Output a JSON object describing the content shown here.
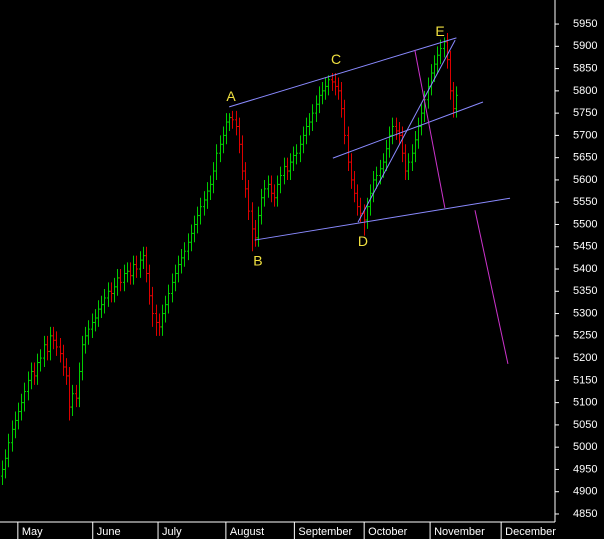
{
  "chart_data": {
    "type": "ohlc",
    "up_color": "#00cc00",
    "down_color": "#dd0000",
    "xlim": [
      -0.6,
      172.8
    ],
    "xticks": [
      {
        "value": 5.6,
        "label": "May"
      },
      {
        "value": 29,
        "label": "June"
      },
      {
        "value": 49.4,
        "label": "July"
      },
      {
        "value": 70.6,
        "label": "August"
      },
      {
        "value": 92,
        "label": "September"
      },
      {
        "value": 113.8,
        "label": "October"
      },
      {
        "value": 134.4,
        "label": "November"
      },
      {
        "value": 156.6,
        "label": "December"
      }
    ],
    "ylim": [
      4832,
      6004
    ],
    "yticks": [
      4850,
      4900,
      4950,
      5000,
      5050,
      5100,
      5150,
      5200,
      5250,
      5300,
      5350,
      5400,
      5450,
      5500,
      5550,
      5600,
      5650,
      5700,
      5750,
      5800,
      5850,
      5900,
      5950
    ],
    "open": [
      4935,
      4950,
      4975,
      5010,
      5040,
      5060,
      5080,
      5100,
      5125,
      5150,
      5170,
      5160,
      5190,
      5200,
      5230,
      5215,
      5250,
      5240,
      5225,
      5210,
      5180,
      5160,
      5090,
      5120,
      5110,
      5170,
      5230,
      5250,
      5265,
      5280,
      5290,
      5310,
      5320,
      5335,
      5350,
      5345,
      5360,
      5380,
      5370,
      5390,
      5395,
      5385,
      5410,
      5400,
      5420,
      5430,
      5390,
      5340,
      5300,
      5280,
      5270,
      5300,
      5320,
      5345,
      5370,
      5390,
      5410,
      5425,
      5440,
      5460,
      5480,
      5500,
      5520,
      5540,
      5555,
      5575,
      5590,
      5620,
      5660,
      5680,
      5700,
      5730,
      5740,
      5735,
      5720,
      5680,
      5620,
      5580,
      5530,
      5490,
      5470,
      5520,
      5560,
      5580,
      5590,
      5570,
      5560,
      5590,
      5610,
      5630,
      5620,
      5640,
      5655,
      5660,
      5680,
      5700,
      5720,
      5730,
      5750,
      5770,
      5790,
      5800,
      5810,
      5825,
      5820,
      5810,
      5800,
      5760,
      5700,
      5640,
      5600,
      5570,
      5540,
      5525,
      5510,
      5540,
      5570,
      5600,
      5610,
      5625,
      5640,
      5670,
      5700,
      5720,
      5710,
      5700,
      5660,
      5620,
      5640,
      5660,
      5690,
      5720,
      5750,
      5780,
      5810,
      5840,
      5860,
      5880,
      5895,
      5910,
      5870,
      5800,
      5760
    ],
    "high": [
      4970,
      4995,
      5030,
      5060,
      5080,
      5100,
      5120,
      5145,
      5170,
      5190,
      5190,
      5210,
      5220,
      5250,
      5250,
      5270,
      5270,
      5260,
      5245,
      5230,
      5200,
      5180,
      5140,
      5140,
      5190,
      5250,
      5270,
      5285,
      5300,
      5310,
      5330,
      5340,
      5355,
      5370,
      5370,
      5380,
      5400,
      5400,
      5410,
      5415,
      5415,
      5430,
      5430,
      5440,
      5450,
      5450,
      5410,
      5360,
      5320,
      5300,
      5320,
      5340,
      5365,
      5390,
      5410,
      5430,
      5445,
      5460,
      5480,
      5500,
      5520,
      5540,
      5560,
      5575,
      5595,
      5610,
      5640,
      5680,
      5700,
      5720,
      5750,
      5750,
      5755,
      5755,
      5740,
      5700,
      5640,
      5600,
      5550,
      5510,
      5540,
      5580,
      5600,
      5610,
      5610,
      5590,
      5610,
      5630,
      5650,
      5650,
      5660,
      5675,
      5680,
      5700,
      5720,
      5740,
      5750,
      5770,
      5790,
      5810,
      5820,
      5830,
      5835,
      5840,
      5840,
      5830,
      5820,
      5780,
      5720,
      5660,
      5620,
      5590,
      5560,
      5545,
      5560,
      5590,
      5620,
      5630,
      5645,
      5660,
      5690,
      5720,
      5740,
      5740,
      5730,
      5720,
      5680,
      5660,
      5680,
      5710,
      5740,
      5770,
      5800,
      5830,
      5860,
      5880,
      5900,
      5915,
      5920,
      5930,
      5890,
      5820,
      5810
    ],
    "low": [
      4915,
      4930,
      4955,
      4990,
      5020,
      5040,
      5060,
      5080,
      5105,
      5130,
      5140,
      5140,
      5170,
      5180,
      5195,
      5195,
      5220,
      5205,
      5190,
      5160,
      5140,
      5060,
      5070,
      5090,
      5090,
      5150,
      5210,
      5230,
      5245,
      5260,
      5270,
      5290,
      5300,
      5315,
      5325,
      5325,
      5340,
      5350,
      5350,
      5370,
      5365,
      5365,
      5380,
      5380,
      5400,
      5370,
      5320,
      5270,
      5250,
      5250,
      5250,
      5280,
      5300,
      5325,
      5350,
      5370,
      5390,
      5405,
      5420,
      5440,
      5460,
      5480,
      5500,
      5520,
      5535,
      5555,
      5570,
      5600,
      5640,
      5660,
      5680,
      5710,
      5715,
      5700,
      5660,
      5600,
      5560,
      5510,
      5440,
      5450,
      5450,
      5500,
      5540,
      5560,
      5550,
      5540,
      5540,
      5570,
      5590,
      5600,
      5600,
      5620,
      5635,
      5640,
      5660,
      5680,
      5700,
      5710,
      5730,
      5750,
      5770,
      5780,
      5790,
      5800,
      5790,
      5780,
      5740,
      5680,
      5620,
      5580,
      5550,
      5520,
      5505,
      5475,
      5490,
      5520,
      5550,
      5580,
      5590,
      5605,
      5620,
      5650,
      5680,
      5690,
      5680,
      5640,
      5600,
      5600,
      5620,
      5640,
      5670,
      5700,
      5730,
      5760,
      5790,
      5820,
      5840,
      5860,
      5875,
      5850,
      5780,
      5740,
      5740
    ],
    "close": [
      4950,
      4975,
      5010,
      5040,
      5060,
      5080,
      5100,
      5125,
      5150,
      5170,
      5160,
      5190,
      5200,
      5230,
      5215,
      5250,
      5240,
      5225,
      5210,
      5180,
      5160,
      5090,
      5120,
      5110,
      5170,
      5230,
      5250,
      5265,
      5280,
      5290,
      5310,
      5320,
      5335,
      5350,
      5345,
      5360,
      5380,
      5370,
      5390,
      5395,
      5385,
      5410,
      5400,
      5420,
      5430,
      5390,
      5340,
      5300,
      5280,
      5270,
      5300,
      5320,
      5345,
      5370,
      5390,
      5410,
      5425,
      5440,
      5460,
      5480,
      5500,
      5520,
      5540,
      5555,
      5575,
      5590,
      5620,
      5660,
      5680,
      5700,
      5730,
      5740,
      5735,
      5720,
      5680,
      5620,
      5580,
      5530,
      5490,
      5470,
      5520,
      5560,
      5580,
      5590,
      5570,
      5560,
      5590,
      5610,
      5630,
      5620,
      5640,
      5655,
      5660,
      5680,
      5700,
      5720,
      5730,
      5750,
      5770,
      5790,
      5800,
      5810,
      5825,
      5820,
      5810,
      5800,
      5760,
      5700,
      5640,
      5600,
      5570,
      5540,
      5525,
      5510,
      5540,
      5570,
      5600,
      5610,
      5625,
      5640,
      5670,
      5700,
      5720,
      5710,
      5700,
      5660,
      5620,
      5640,
      5660,
      5690,
      5720,
      5750,
      5780,
      5810,
      5840,
      5860,
      5880,
      5895,
      5910,
      5870,
      5800,
      5760,
      5790
    ],
    "trendlines": [
      {
        "color": "#8a8aff",
        "x": [
          71,
          142
        ],
        "y": [
          5764,
          5919
        ]
      },
      {
        "color": "#8a8aff",
        "x": [
          79,
          158.75
        ],
        "y": [
          5465,
          5559
        ]
      },
      {
        "color": "#8a8aff",
        "x": [
          103.4,
          150.3
        ],
        "y": [
          5649,
          5775
        ]
      },
      {
        "color": "#8a8aff",
        "x": [
          111.25,
          141.6
        ],
        "y": [
          5505,
          5914
        ]
      },
      {
        "color": "#cc33cc",
        "x": [
          129,
          138.4
        ],
        "y": [
          5892,
          5537
        ]
      },
      {
        "color": "#cc33cc",
        "x": [
          147.8,
          158.1
        ],
        "y": [
          5532,
          5187
        ]
      }
    ],
    "annotations": [
      {
        "label": "A",
        "x": 71.6,
        "y": 5786
      },
      {
        "label": "B",
        "x": 80,
        "y": 5416
      },
      {
        "label": "C",
        "x": 104.4,
        "y": 5869
      },
      {
        "label": "D",
        "x": 112.8,
        "y": 5460
      },
      {
        "label": "E",
        "x": 136.9,
        "y": 5932
      }
    ],
    "annotation_color": "#f0e040"
  }
}
